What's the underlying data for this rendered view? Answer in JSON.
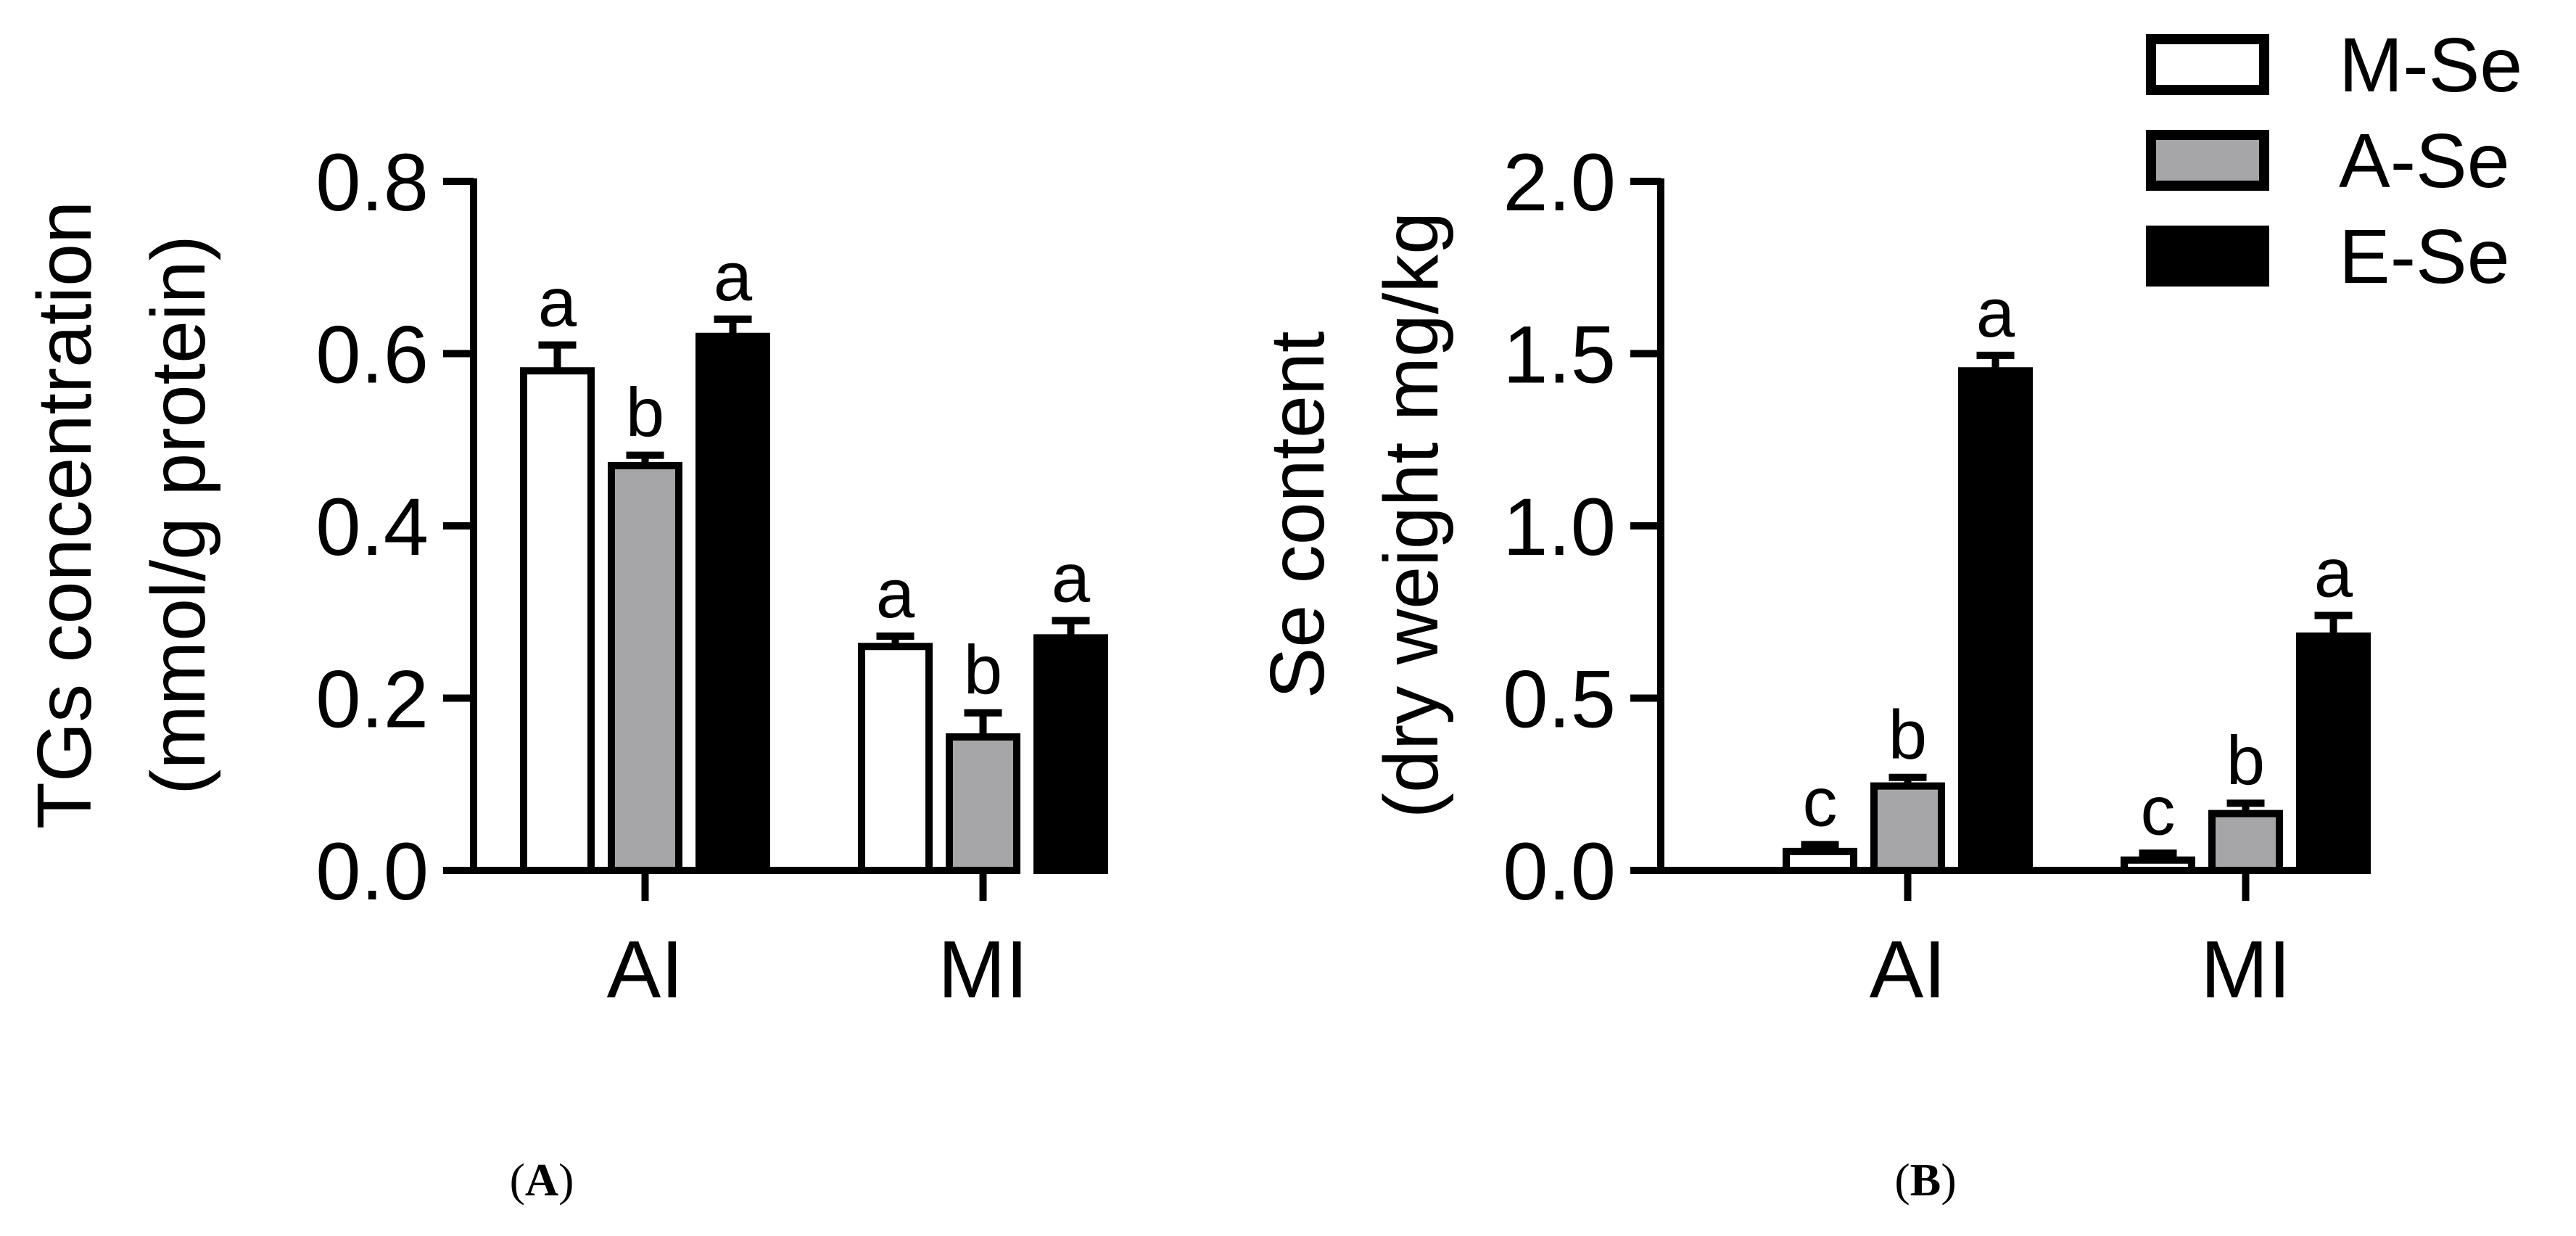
{
  "legend": [
    {
      "name": "M-Se",
      "color": "#ffffff"
    },
    {
      "name": "A-Se",
      "color": "#a6a6a8"
    },
    {
      "name": "E-Se",
      "color": "#000000"
    }
  ],
  "panel_labels": [
    {
      "open": "(",
      "letter": "A",
      "close": ")"
    },
    {
      "open": "(",
      "letter": "B",
      "close": ")"
    }
  ],
  "chart_data": [
    {
      "type": "bar",
      "categories": [
        "AI",
        "MI"
      ],
      "ylabel_line1": "TGs concentration",
      "ylabel_line2": "(mmol/g protein)",
      "ylim": [
        0,
        0.8
      ],
      "yticks": [
        {
          "value": 0.0,
          "label": "0.0"
        },
        {
          "value": 0.2,
          "label": "0.2"
        },
        {
          "value": 0.4,
          "label": "0.4"
        },
        {
          "value": 0.6,
          "label": "0.6"
        },
        {
          "value": 0.8,
          "label": "0.8"
        }
      ],
      "series": [
        {
          "name": "M-Se",
          "values": [
            0.58,
            0.26
          ],
          "errors": [
            0.03,
            0.012
          ],
          "significance": [
            "a",
            "a"
          ]
        },
        {
          "name": "A-Se",
          "values": [
            0.47,
            0.155
          ],
          "errors": [
            0.012,
            0.028
          ],
          "significance": [
            "b",
            "b"
          ]
        },
        {
          "name": "E-Se",
          "values": [
            0.62,
            0.27
          ],
          "errors": [
            0.02,
            0.02
          ],
          "significance": [
            "a",
            "a"
          ]
        }
      ]
    },
    {
      "type": "bar",
      "categories": [
        "AI",
        "MI"
      ],
      "ylabel_line1": "Se content",
      "ylabel_line2": "(dry weight mg/kg",
      "ylim": [
        0,
        2.0
      ],
      "yticks": [
        {
          "value": 0.0,
          "label": "0.0"
        },
        {
          "value": 0.5,
          "label": "0.5"
        },
        {
          "value": 1.0,
          "label": "1.0"
        },
        {
          "value": 1.5,
          "label": "1.5"
        },
        {
          "value": 2.0,
          "label": "2.0"
        }
      ],
      "series": [
        {
          "name": "M-Se",
          "values": [
            0.055,
            0.03
          ],
          "errors": [
            0.02,
            0.02
          ],
          "significance": [
            "c",
            "c"
          ]
        },
        {
          "name": "A-Se",
          "values": [
            0.245,
            0.165
          ],
          "errors": [
            0.025,
            0.03
          ],
          "significance": [
            "b",
            "b"
          ]
        },
        {
          "name": "E-Se",
          "values": [
            1.45,
            0.68
          ],
          "errors": [
            0.045,
            0.06
          ],
          "significance": [
            "a",
            "a"
          ]
        }
      ]
    }
  ]
}
